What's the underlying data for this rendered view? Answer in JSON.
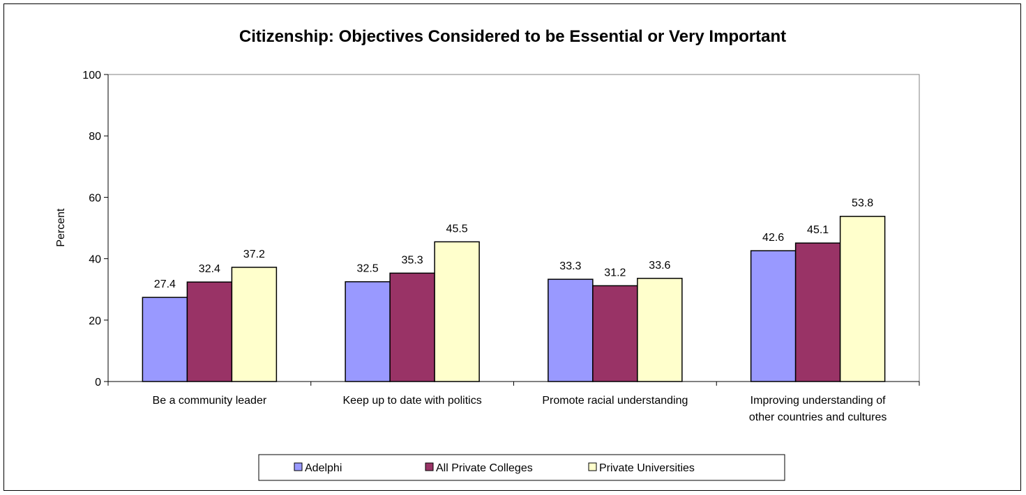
{
  "chart_data": {
    "type": "bar",
    "title": "Citizenship: Objectives Considered to be Essential or Very Important",
    "xlabel": "",
    "ylabel": "Percent",
    "ylim": [
      0,
      100
    ],
    "yticks": [
      0,
      20,
      40,
      60,
      80,
      100
    ],
    "grid": false,
    "legend_position": "bottom",
    "categories": [
      [
        "Be a community leader"
      ],
      [
        "Keep up to date with politics"
      ],
      [
        "Promote racial understanding"
      ],
      [
        "Improving understanding of",
        "other countries and cultures"
      ]
    ],
    "series": [
      {
        "name": "Adelphi",
        "color": "#9999ff",
        "values": [
          27.4,
          32.5,
          33.3,
          42.6
        ]
      },
      {
        "name": "All Private Colleges",
        "color": "#993366",
        "values": [
          32.4,
          35.3,
          31.2,
          45.1
        ]
      },
      {
        "name": "Private Universities",
        "color": "#ffffcc",
        "values": [
          37.2,
          45.5,
          33.6,
          53.8
        ]
      }
    ]
  }
}
